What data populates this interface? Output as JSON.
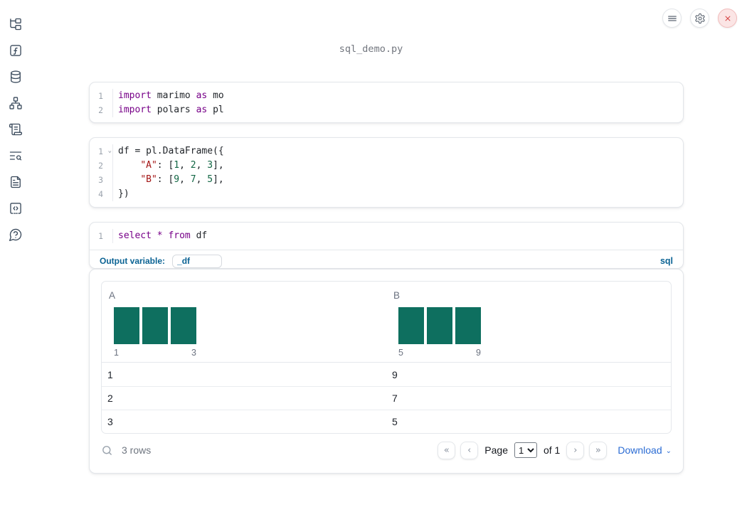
{
  "colors": {
    "accent_blue": "#2b6cd4",
    "sql_label_blue": "#0b6394",
    "histogram_teal": "#0e6f5f",
    "keyword_purple": "#770088",
    "string_red": "#a31515",
    "number_green": "#116644",
    "close_red": "#d64545"
  },
  "icons": {
    "first": "«",
    "prev": "‹",
    "next": "›",
    "last": "»",
    "chevron_down": "⌄",
    "fold": "⌄"
  },
  "notebook": {
    "title": "sql_demo.py"
  },
  "sidebar": {
    "items": [
      {
        "icon": "file-tree-icon"
      },
      {
        "icon": "function-icon"
      },
      {
        "icon": "database-icon"
      },
      {
        "icon": "dependency-graph-icon"
      },
      {
        "icon": "scroll-icon"
      },
      {
        "icon": "text-search-icon"
      },
      {
        "icon": "document-icon"
      },
      {
        "icon": "snippets-icon"
      },
      {
        "icon": "help-icon"
      }
    ]
  },
  "topbar": {
    "buttons": [
      "menu",
      "settings",
      "shutdown"
    ]
  },
  "cells": {
    "imports": {
      "lines": [
        {
          "no": "1",
          "tokens": [
            {
              "c": "kw",
              "t": "import"
            },
            {
              "t": " marimo "
            },
            {
              "c": "kw",
              "t": "as"
            },
            {
              "t": " mo"
            }
          ]
        },
        {
          "no": "2",
          "tokens": [
            {
              "c": "kw",
              "t": "import"
            },
            {
              "t": " polars "
            },
            {
              "c": "kw",
              "t": "as"
            },
            {
              "t": " pl"
            }
          ]
        }
      ]
    },
    "dataframe": {
      "lines": [
        {
          "no": "1",
          "fold": true,
          "tokens": [
            {
              "t": "df = pl.DataFrame({"
            }
          ]
        },
        {
          "no": "2",
          "tokens": [
            {
              "t": "    "
            },
            {
              "c": "str",
              "t": "\"A\""
            },
            {
              "t": ": ["
            },
            {
              "c": "num",
              "t": "1"
            },
            {
              "t": ", "
            },
            {
              "c": "num",
              "t": "2"
            },
            {
              "t": ", "
            },
            {
              "c": "num",
              "t": "3"
            },
            {
              "t": "],"
            }
          ]
        },
        {
          "no": "3",
          "tokens": [
            {
              "t": "    "
            },
            {
              "c": "str",
              "t": "\"B\""
            },
            {
              "t": ": ["
            },
            {
              "c": "num",
              "t": "9"
            },
            {
              "t": ", "
            },
            {
              "c": "num",
              "t": "7"
            },
            {
              "t": ", "
            },
            {
              "c": "num",
              "t": "5"
            },
            {
              "t": "],"
            }
          ]
        },
        {
          "no": "4",
          "tokens": [
            {
              "t": "})"
            }
          ]
        }
      ]
    },
    "sql": {
      "lines": [
        {
          "no": "1",
          "tokens": [
            {
              "c": "kw",
              "t": "select"
            },
            {
              "t": " "
            },
            {
              "c": "kw",
              "t": "*"
            },
            {
              "t": " "
            },
            {
              "c": "kw",
              "t": "from"
            },
            {
              "t": " df"
            }
          ]
        }
      ],
      "output_variable_label": "Output variable:",
      "output_variable_value": "_df",
      "language_badge": "sql"
    }
  },
  "output_table": {
    "columns": [
      {
        "label": "A",
        "hist_values": [
          1,
          2,
          3
        ],
        "hist_min": "1",
        "hist_max": "3"
      },
      {
        "label": "B",
        "hist_values": [
          9,
          7,
          5
        ],
        "hist_min": "5",
        "hist_max": "9"
      }
    ],
    "rows": [
      [
        "1",
        "9"
      ],
      [
        "2",
        "7"
      ],
      [
        "3",
        "5"
      ]
    ],
    "footer": {
      "row_count": "3 rows",
      "page_label": "Page",
      "page": "1",
      "of_label": "of 1",
      "download_label": "Download"
    }
  }
}
